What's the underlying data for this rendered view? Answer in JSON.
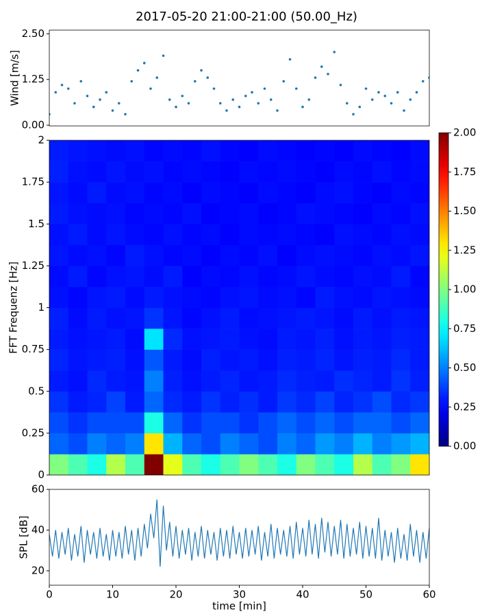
{
  "title": "2017-05-20 21:00-21:00 (50.00_Hz)",
  "chart_data": [
    {
      "type": "scatter",
      "ylabel": "Wind [m/s]",
      "color": "#1f77b4",
      "xlim": [
        0,
        60
      ],
      "ylim": [
        -0.02,
        2.6
      ],
      "yticks": [
        {
          "value": 0,
          "label": "0.00"
        },
        {
          "value": 1.25,
          "label": "1.25"
        },
        {
          "value": 2.5,
          "label": "2.50"
        }
      ],
      "x": [
        0,
        1,
        2,
        3,
        4,
        5,
        6,
        7,
        8,
        9,
        10,
        11,
        12,
        13,
        14,
        15,
        16,
        17,
        18,
        19,
        20,
        21,
        22,
        23,
        24,
        25,
        26,
        27,
        28,
        29,
        30,
        31,
        32,
        33,
        34,
        35,
        36,
        37,
        38,
        39,
        40,
        41,
        42,
        43,
        44,
        45,
        46,
        47,
        48,
        49,
        50,
        51,
        52,
        53,
        54,
        55,
        56,
        57,
        58,
        59,
        60
      ],
      "values": [
        0.3,
        0.9,
        1.1,
        1.0,
        0.6,
        1.2,
        0.8,
        0.5,
        0.7,
        0.9,
        0.4,
        0.6,
        0.3,
        1.2,
        1.5,
        1.7,
        1.0,
        1.3,
        1.9,
        0.7,
        0.5,
        0.8,
        0.6,
        1.2,
        1.5,
        1.3,
        1.0,
        0.6,
        0.4,
        0.7,
        0.5,
        0.8,
        0.9,
        0.6,
        1.0,
        0.7,
        0.4,
        1.2,
        1.8,
        1.0,
        0.5,
        0.7,
        1.3,
        1.6,
        1.4,
        2.0,
        1.1,
        0.6,
        0.3,
        0.5,
        1.0,
        0.7,
        0.9,
        0.8,
        0.6,
        0.9,
        0.4,
        0.7,
        0.9,
        1.2,
        1.3
      ]
    },
    {
      "type": "heatmap",
      "ylabel": "FFT Frequenz [Hz]",
      "colormap": "jet",
      "xlim": [
        0,
        60
      ],
      "ylim": [
        0,
        2
      ],
      "yticks": [
        0,
        0.25,
        0.5,
        0.75,
        1,
        1.25,
        1.5,
        1.75,
        2
      ],
      "clim": [
        0,
        2
      ],
      "cticks": [
        {
          "value": 0,
          "label": "0.00"
        },
        {
          "value": 0.25,
          "label": "0.25"
        },
        {
          "value": 0.5,
          "label": "0.50"
        },
        {
          "value": 0.75,
          "label": "0.75"
        },
        {
          "value": 1,
          "label": "1.00"
        },
        {
          "value": 1.25,
          "label": "1.25"
        },
        {
          "value": 1.5,
          "label": "1.50"
        },
        {
          "value": 1.75,
          "label": "1.75"
        },
        {
          "value": 2,
          "label": "2.00"
        }
      ],
      "xbins": [
        0,
        3,
        6,
        9,
        12,
        15,
        18,
        21,
        24,
        27,
        30,
        33,
        36,
        39,
        42,
        45,
        48,
        51,
        54,
        57,
        60
      ],
      "ybins": [
        0,
        0.125,
        0.25,
        0.375,
        0.5,
        0.625,
        0.75,
        0.875,
        1,
        1.125,
        1.25,
        1.375,
        1.5,
        1.625,
        1.75,
        1.875,
        2
      ],
      "values": [
        [
          1.0,
          0.9,
          0.8,
          1.1,
          0.9,
          2.0,
          1.2,
          0.9,
          0.8,
          0.9,
          1.0,
          0.9,
          0.8,
          1.0,
          0.9,
          0.8,
          1.1,
          0.9,
          1.0,
          1.3
        ],
        [
          0.45,
          0.4,
          0.5,
          0.45,
          0.5,
          1.3,
          0.6,
          0.45,
          0.4,
          0.5,
          0.45,
          0.4,
          0.5,
          0.45,
          0.55,
          0.5,
          0.6,
          0.5,
          0.55,
          0.6
        ],
        [
          0.4,
          0.35,
          0.4,
          0.4,
          0.4,
          0.8,
          0.45,
          0.35,
          0.4,
          0.4,
          0.35,
          0.4,
          0.45,
          0.4,
          0.45,
          0.4,
          0.45,
          0.45,
          0.4,
          0.45
        ],
        [
          0.35,
          0.3,
          0.32,
          0.38,
          0.3,
          0.45,
          0.33,
          0.3,
          0.35,
          0.31,
          0.34,
          0.3,
          0.36,
          0.33,
          0.38,
          0.32,
          0.35,
          0.4,
          0.33,
          0.36
        ],
        [
          0.3,
          0.28,
          0.33,
          0.3,
          0.29,
          0.5,
          0.31,
          0.28,
          0.3,
          0.32,
          0.29,
          0.3,
          0.33,
          0.31,
          0.3,
          0.34,
          0.32,
          0.3,
          0.35,
          0.31
        ],
        [
          0.32,
          0.29,
          0.3,
          0.31,
          0.28,
          0.42,
          0.3,
          0.27,
          0.31,
          0.29,
          0.3,
          0.28,
          0.31,
          0.3,
          0.32,
          0.29,
          0.31,
          0.3,
          0.33,
          0.3
        ],
        [
          0.3,
          0.28,
          0.29,
          0.3,
          0.27,
          0.7,
          0.33,
          0.28,
          0.29,
          0.3,
          0.28,
          0.27,
          0.3,
          0.29,
          0.31,
          0.28,
          0.3,
          0.29,
          0.31,
          0.3
        ],
        [
          0.31,
          0.27,
          0.3,
          0.28,
          0.29,
          0.35,
          0.29,
          0.26,
          0.28,
          0.3,
          0.27,
          0.28,
          0.29,
          0.3,
          0.29,
          0.27,
          0.3,
          0.28,
          0.3,
          0.29
        ],
        [
          0.28,
          0.26,
          0.29,
          0.3,
          0.27,
          0.3,
          0.28,
          0.27,
          0.26,
          0.28,
          0.29,
          0.27,
          0.28,
          0.26,
          0.3,
          0.28,
          0.27,
          0.29,
          0.28,
          0.27
        ],
        [
          0.27,
          0.3,
          0.26,
          0.28,
          0.29,
          0.27,
          0.3,
          0.25,
          0.27,
          0.26,
          0.28,
          0.26,
          0.27,
          0.29,
          0.27,
          0.26,
          0.28,
          0.27,
          0.3,
          0.26
        ],
        [
          0.29,
          0.27,
          0.28,
          0.26,
          0.3,
          0.28,
          0.26,
          0.27,
          0.25,
          0.27,
          0.26,
          0.28,
          0.25,
          0.27,
          0.28,
          0.27,
          0.26,
          0.28,
          0.27,
          0.29
        ],
        [
          0.28,
          0.3,
          0.27,
          0.29,
          0.27,
          0.26,
          0.28,
          0.26,
          0.27,
          0.25,
          0.27,
          0.26,
          0.27,
          0.26,
          0.25,
          0.28,
          0.27,
          0.26,
          0.28,
          0.27
        ],
        [
          0.3,
          0.28,
          0.27,
          0.28,
          0.26,
          0.27,
          0.26,
          0.28,
          0.25,
          0.26,
          0.27,
          0.25,
          0.26,
          0.28,
          0.27,
          0.26,
          0.25,
          0.27,
          0.26,
          0.28
        ],
        [
          0.29,
          0.27,
          0.3,
          0.27,
          0.28,
          0.26,
          0.27,
          0.25,
          0.27,
          0.26,
          0.25,
          0.27,
          0.26,
          0.25,
          0.27,
          0.28,
          0.26,
          0.25,
          0.27,
          0.26
        ],
        [
          0.31,
          0.28,
          0.27,
          0.29,
          0.27,
          0.28,
          0.26,
          0.27,
          0.26,
          0.25,
          0.27,
          0.26,
          0.27,
          0.26,
          0.25,
          0.27,
          0.26,
          0.28,
          0.26,
          0.27
        ],
        [
          0.3,
          0.29,
          0.28,
          0.27,
          0.28,
          0.26,
          0.27,
          0.26,
          0.28,
          0.26,
          0.25,
          0.27,
          0.26,
          0.25,
          0.26,
          0.25,
          0.27,
          0.26,
          0.25,
          0.27
        ]
      ]
    },
    {
      "type": "line",
      "ylabel": "SPL [dB]",
      "xlabel": "time [min]",
      "color": "#1f77b4",
      "xlim": [
        0,
        60
      ],
      "ylim": [
        12.9,
        60
      ],
      "xticks": [
        0,
        10,
        20,
        30,
        40,
        50,
        60
      ],
      "yticks": [
        20,
        40,
        60
      ],
      "x": [
        0,
        0.5,
        1,
        1.5,
        2,
        2.5,
        3,
        3.5,
        4,
        4.5,
        5,
        5.5,
        6,
        6.5,
        7,
        7.5,
        8,
        8.5,
        9,
        9.5,
        10,
        10.5,
        11,
        11.5,
        12,
        12.5,
        13,
        13.5,
        14,
        14.5,
        15,
        15.5,
        16,
        16.5,
        17,
        17.5,
        18,
        18.5,
        19,
        19.5,
        20,
        20.5,
        21,
        21.5,
        22,
        22.5,
        23,
        23.5,
        24,
        24.5,
        25,
        25.5,
        26,
        26.5,
        27,
        27.5,
        28,
        28.5,
        29,
        29.5,
        30,
        30.5,
        31,
        31.5,
        32,
        32.5,
        33,
        33.5,
        34,
        34.5,
        35,
        35.5,
        36,
        36.5,
        37,
        37.5,
        38,
        38.5,
        39,
        39.5,
        40,
        40.5,
        41,
        41.5,
        42,
        42.5,
        43,
        43.5,
        44,
        44.5,
        45,
        45.5,
        46,
        46.5,
        47,
        47.5,
        48,
        48.5,
        49,
        49.5,
        50,
        50.5,
        51,
        51.5,
        52,
        52.5,
        53,
        53.5,
        54,
        54.5,
        55,
        55.5,
        56,
        56.5,
        57,
        57.5,
        58,
        58.5,
        59,
        59.5,
        60
      ],
      "values": [
        38,
        27,
        40,
        26,
        39,
        28,
        41,
        25,
        38,
        27,
        42,
        24,
        40,
        28,
        39,
        26,
        41,
        27,
        38,
        25,
        40,
        27,
        39,
        26,
        42,
        28,
        40,
        25,
        41,
        27,
        43,
        31,
        48,
        36,
        55,
        22,
        52,
        30,
        44,
        27,
        42,
        26,
        40,
        28,
        41,
        25,
        39,
        27,
        42,
        26,
        40,
        28,
        39,
        25,
        41,
        27,
        40,
        26,
        42,
        28,
        39,
        26,
        41,
        27,
        40,
        28,
        42,
        25,
        39,
        27,
        43,
        26,
        41,
        28,
        40,
        27,
        42,
        26,
        44,
        28,
        41,
        27,
        45,
        28,
        43,
        26,
        46,
        29,
        44,
        27,
        42,
        28,
        45,
        26,
        43,
        27,
        41,
        28,
        44,
        26,
        42,
        27,
        41,
        26,
        46,
        25,
        40,
        27,
        39,
        24,
        41,
        26,
        38,
        25,
        43,
        27,
        40,
        24,
        39,
        26,
        41
      ]
    }
  ]
}
